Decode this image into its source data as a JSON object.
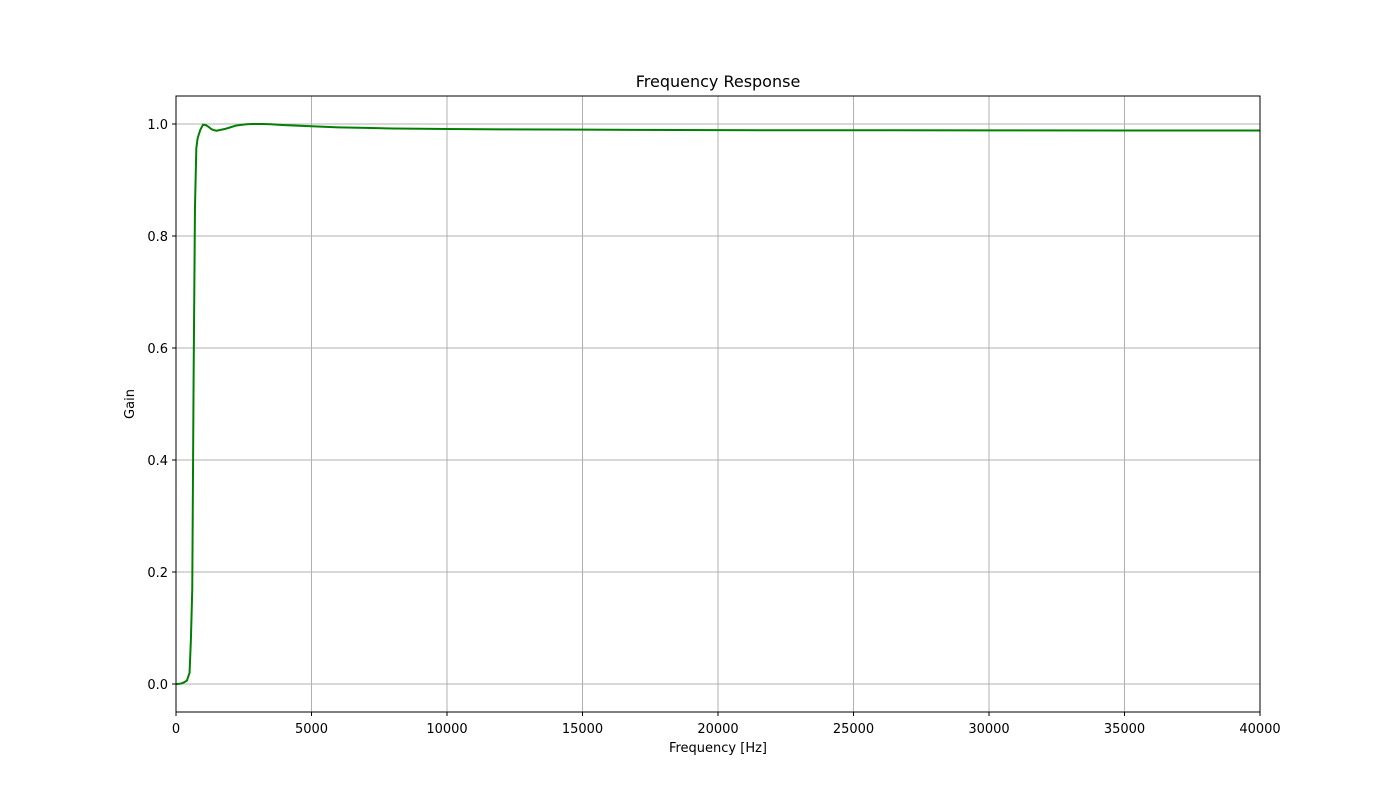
{
  "chart_data": {
    "type": "line",
    "title": "Frequency Response",
    "xlabel": "Frequency [Hz]",
    "ylabel": "Gain",
    "xlim": [
      0,
      40000
    ],
    "ylim": [
      -0.05,
      1.05
    ],
    "x_ticks": [
      0,
      5000,
      10000,
      15000,
      20000,
      25000,
      30000,
      35000,
      40000
    ],
    "x_tick_labels": [
      "0",
      "5000",
      "10000",
      "15000",
      "20000",
      "25000",
      "30000",
      "35000",
      "40000"
    ],
    "y_ticks": [
      0.0,
      0.2,
      0.4,
      0.6,
      0.8,
      1.0
    ],
    "y_tick_labels": [
      "0.0",
      "0.2",
      "0.4",
      "0.6",
      "0.8",
      "1.0"
    ],
    "grid": true,
    "series": [
      {
        "color": "#008000",
        "x": [
          0,
          100,
          200,
          300,
          400,
          500,
          550,
          600,
          650,
          700,
          750,
          800,
          900,
          1000,
          1100,
          1200,
          1300,
          1400,
          1500,
          1600,
          1800,
          2000,
          2200,
          2400,
          2600,
          2800,
          3000,
          3200,
          3500,
          4000,
          5000,
          6000,
          7000,
          8000,
          10000,
          12000,
          15000,
          20000,
          25000,
          30000,
          35000,
          40000
        ],
        "y": [
          0.0,
          0.0003,
          0.001,
          0.003,
          0.006,
          0.02,
          0.08,
          0.17,
          0.55,
          0.85,
          0.957,
          0.975,
          0.99,
          0.999,
          0.998,
          0.995,
          0.991,
          0.989,
          0.988,
          0.989,
          0.991,
          0.994,
          0.997,
          0.9985,
          0.9995,
          1.0,
          1.0,
          1.0,
          0.9995,
          0.998,
          0.996,
          0.994,
          0.993,
          0.992,
          0.991,
          0.9905,
          0.99,
          0.989,
          0.9888,
          0.9886,
          0.9885,
          0.9885
        ]
      }
    ]
  }
}
